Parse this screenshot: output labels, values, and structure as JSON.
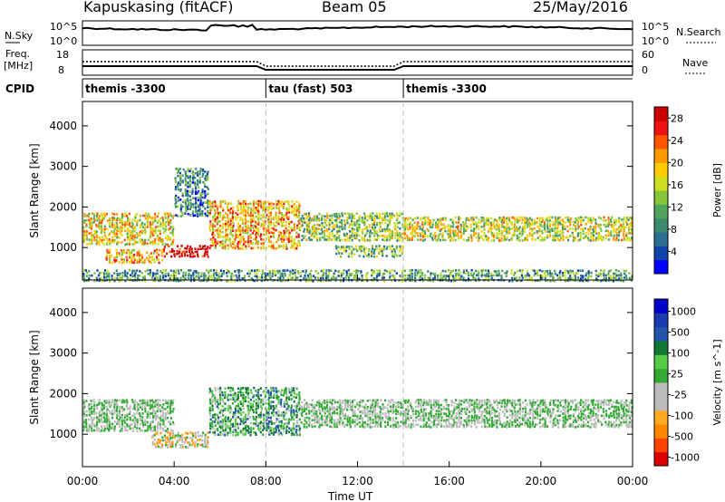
{
  "header": {
    "station": "Kapuskasing (fitACF)",
    "beam": "Beam 05",
    "date": "25/May/2016"
  },
  "panels": {
    "sky_label": "N.Sky",
    "sky_ticks": [
      "10^5",
      "10^0"
    ],
    "search_label": "N.Search",
    "freq_label": "Freq.",
    "freq_unit": "[MHz]",
    "freq_ticks": [
      "18",
      "8"
    ],
    "nave_label": "Nave",
    "nave_ticks": [
      "60",
      "0"
    ],
    "cpid_label": "CPID",
    "cpid_segments": [
      {
        "name": "themis -3300",
        "start_hour": 0,
        "end_hour": 8
      },
      {
        "name": "tau (fast) 503",
        "start_hour": 8,
        "end_hour": 14
      },
      {
        "name": "themis -3300",
        "start_hour": 14,
        "end_hour": 24
      }
    ]
  },
  "colors": {
    "power": [
      "#0000ff",
      "#1144aa",
      "#2a6f91",
      "#3c8a6f",
      "#4fa65a",
      "#86c43a",
      "#cde020",
      "#ffcc00",
      "#ff9900",
      "#ff5500",
      "#ee1111",
      "#cc0000"
    ],
    "velocity": [
      "#dd0000",
      "#ff4400",
      "#ff8800",
      "#ffaa22",
      "#bbbbbb",
      "#bbbbbb",
      "#33aa33",
      "#55cc44",
      "#117733",
      "#2255aa",
      "#1a3ab0",
      "#0000cc"
    ]
  },
  "chart_data": [
    {
      "type": "heatmap",
      "name": "power",
      "xlabel": "",
      "ylabel": "Slant Range [km]",
      "xlim": [
        0,
        24
      ],
      "ylim": [
        200,
        4600
      ],
      "yticks": [
        "1000",
        "2000",
        "3000",
        "4000"
      ],
      "colorbar_label": "Power [dB]",
      "colorbar_ticks": [
        "4",
        "8",
        "12",
        "16",
        "20",
        "24",
        "28"
      ],
      "colorbar_range": [
        0,
        30
      ],
      "approx_structure": [
        {
          "start_hour": 0.0,
          "end_hour": 4.0,
          "range_min": 1100,
          "range_max": 1900,
          "power": 18
        },
        {
          "start_hour": 1.0,
          "end_hour": 3.5,
          "range_min": 650,
          "range_max": 1000,
          "power": 20
        },
        {
          "start_hour": 3.5,
          "end_hour": 5.5,
          "range_min": 800,
          "range_max": 1100,
          "power": 28
        },
        {
          "start_hour": 4.0,
          "end_hour": 5.5,
          "range_min": 1800,
          "range_max": 3000,
          "power": 8
        },
        {
          "start_hour": 5.5,
          "end_hour": 9.5,
          "range_min": 1000,
          "range_max": 2200,
          "power": 20
        },
        {
          "start_hour": 9.5,
          "end_hour": 14.0,
          "range_min": 1200,
          "range_max": 1900,
          "power": 14
        },
        {
          "start_hour": 11.0,
          "end_hour": 14.0,
          "range_min": 800,
          "range_max": 1100,
          "power": 12
        },
        {
          "start_hour": 14.0,
          "end_hour": 24.0,
          "range_min": 1200,
          "range_max": 1800,
          "power": 16
        },
        {
          "start_hour": 0.0,
          "end_hour": 24.0,
          "range_min": 200,
          "range_max": 500,
          "power": 10
        }
      ]
    },
    {
      "type": "heatmap",
      "name": "velocity",
      "xlabel": "Time UT",
      "ylabel": "Slant Range [km]",
      "xlim": [
        0,
        24
      ],
      "ylim": [
        200,
        4600
      ],
      "xticks": [
        "00:00",
        "04:00",
        "08:00",
        "12:00",
        "16:00",
        "20:00",
        "00:00"
      ],
      "yticks": [
        "1000",
        "2000",
        "3000",
        "4000"
      ],
      "colorbar_label": "Velocity [m s^-1]",
      "colorbar_ticks": [
        "1000",
        "500",
        "100",
        "25",
        "-25",
        "-100",
        "-500",
        "-1000"
      ],
      "approx_structure": [
        {
          "start_hour": 0.0,
          "end_hour": 4.0,
          "range_min": 1100,
          "range_max": 1900,
          "velocity": 0
        },
        {
          "start_hour": 3.0,
          "end_hour": 5.5,
          "range_min": 700,
          "range_max": 1100,
          "velocity": -300
        },
        {
          "start_hour": 5.5,
          "end_hour": 9.5,
          "range_min": 1000,
          "range_max": 2200,
          "velocity": 300
        },
        {
          "start_hour": 9.5,
          "end_hour": 24.0,
          "range_min": 1200,
          "range_max": 1900,
          "velocity": 0
        }
      ]
    }
  ]
}
